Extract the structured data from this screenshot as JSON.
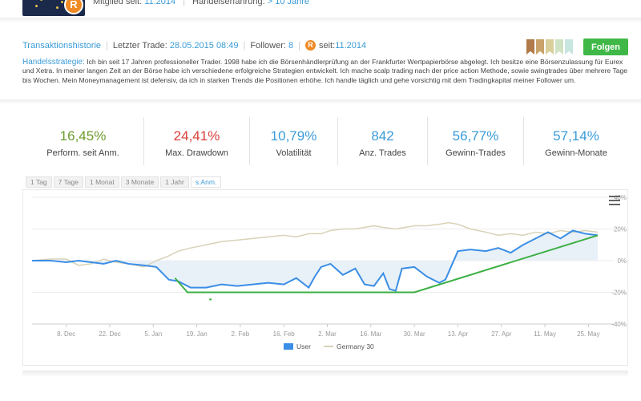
{
  "header": {
    "member_since_label": "Mitglied seit:",
    "member_since_value": "11.2014",
    "experience_label": "Handelserfahrung:",
    "experience_value": "> 10 Jahre",
    "avatar_badge": "R"
  },
  "profile": {
    "history_link": "Transaktionshistorie",
    "last_trade_label": "Letzter Trade:",
    "last_trade_value": "28.05.2015 08:49",
    "follower_label": "Follower:",
    "follower_value": "8",
    "since_label": "seit:",
    "since_value": "11.2014",
    "follow_button": "Folgen",
    "flag_colors": [
      "#b07a4a",
      "#c9a36a",
      "#d8cf9a",
      "#cfe2c4",
      "#c8e6e0"
    ]
  },
  "strategy": {
    "label": "Handelsstrategie:",
    "text": "Ich bin seit 17 Jahren professioneller Trader. 1998 habe ich die Börsenhändlerprüfung an der Frankfurter Wertpapierbörse abgelegt. Ich besitze eine Börsenzulassung für Eurex und Xetra. In meiner langen Zeit an der Börse habe ich verschiedene erfolgreiche Strategien entwickelt. Ich mache scalp trading nach der price action Methode, sowie swingtrades über mehrere Tage bis Wochen. Mein Moneymanagement ist defensiv, da ich in starken Trends die Positionen erhöhe. Ich handle täglich und gehe vorsichtig mit dem Tradingkapital meiner Follower um."
  },
  "stats": [
    {
      "value": "16,45%",
      "label": "Perform. seit Anm.",
      "color": "#6d9b2c"
    },
    {
      "value": "24,41%",
      "label": "Max. Drawdown",
      "color": "#d9403a"
    },
    {
      "value": "10,79%",
      "label": "Volatilität",
      "color": "#3a9bd8"
    },
    {
      "value": "842",
      "label": "Anz. Trades",
      "color": "#3a9bd8"
    },
    {
      "value": "56,77%",
      "label": "Gewinn-Trades",
      "color": "#3a9bd8"
    },
    {
      "value": "57,14%",
      "label": "Gewinn-Monate",
      "color": "#3a9bd8"
    }
  ],
  "chart_tabs": [
    "1 Tag",
    "7 Tage",
    "1 Monat",
    "3 Monate",
    "1 Jahr",
    "s.Anm."
  ],
  "chart_tab_active": "s.Anm.",
  "chart_data": {
    "type": "line",
    "x_ticks": [
      "8. Dec",
      "22. Dec",
      "5. Jan",
      "19. Jan",
      "2. Feb",
      "16. Feb",
      "2. Mar",
      "16. Mar",
      "30. Mar",
      "13. Apr",
      "27. Apr",
      "11. May",
      "25. May"
    ],
    "y_ticks": [
      "40%",
      "20%",
      "0%",
      "-20%",
      "-40%"
    ],
    "ylim": [
      -40,
      40
    ],
    "x_range": [
      "2014-11-27",
      "2015-05-28"
    ],
    "grid": true,
    "legend_position": "bottom",
    "series": [
      {
        "name": "User",
        "color": "#3a8ee6",
        "type": "area",
        "x": [
          "2014-11-27",
          "2014-12-03",
          "2014-12-08",
          "2014-12-12",
          "2014-12-16",
          "2014-12-20",
          "2014-12-24",
          "2014-12-28",
          "2015-01-02",
          "2015-01-06",
          "2015-01-10",
          "2015-01-13",
          "2015-01-17",
          "2015-01-22",
          "2015-01-27",
          "2015-02-01",
          "2015-02-06",
          "2015-02-11",
          "2015-02-16",
          "2015-02-20",
          "2015-02-24",
          "2015-02-26",
          "2015-02-28",
          "2015-03-03",
          "2015-03-07",
          "2015-03-11",
          "2015-03-14",
          "2015-03-17",
          "2015-03-20",
          "2015-03-22",
          "2015-03-24",
          "2015-03-26",
          "2015-03-30",
          "2015-04-03",
          "2015-04-07",
          "2015-04-09",
          "2015-04-11",
          "2015-04-13",
          "2015-04-17",
          "2015-04-22",
          "2015-04-26",
          "2015-04-30",
          "2015-05-04",
          "2015-05-08",
          "2015-05-12",
          "2015-05-16",
          "2015-05-20",
          "2015-05-24",
          "2015-05-28"
        ],
        "y": [
          0,
          0,
          -1,
          0,
          -1,
          -2,
          0,
          -2,
          -3,
          -4,
          -12,
          -13,
          -17,
          -17,
          -15,
          -16,
          -15,
          -14,
          -15,
          -11,
          -17,
          -10,
          -4,
          -2,
          -9,
          -5,
          -15,
          -16,
          -8,
          -18,
          -19,
          -5,
          -4,
          -10,
          -14,
          -12,
          -3,
          6,
          7,
          6,
          8,
          5,
          10,
          14,
          18,
          14,
          19,
          17,
          16
        ]
      },
      {
        "name": "Germany 30",
        "color": "#d8d2b8",
        "type": "line",
        "x": [
          "2014-11-27",
          "2014-12-03",
          "2014-12-08",
          "2014-12-12",
          "2014-12-16",
          "2014-12-20",
          "2014-12-24",
          "2014-12-28",
          "2015-01-02",
          "2015-01-06",
          "2015-01-10",
          "2015-01-13",
          "2015-01-17",
          "2015-01-22",
          "2015-01-27",
          "2015-02-01",
          "2015-02-06",
          "2015-02-11",
          "2015-02-16",
          "2015-02-20",
          "2015-02-24",
          "2015-02-28",
          "2015-03-03",
          "2015-03-07",
          "2015-03-11",
          "2015-03-14",
          "2015-03-17",
          "2015-03-20",
          "2015-03-24",
          "2015-03-30",
          "2015-04-03",
          "2015-04-07",
          "2015-04-10",
          "2015-04-13",
          "2015-04-17",
          "2015-04-22",
          "2015-04-26",
          "2015-04-30",
          "2015-05-04",
          "2015-05-08",
          "2015-05-12",
          "2015-05-16",
          "2015-05-20",
          "2015-05-24",
          "2015-05-28"
        ],
        "y": [
          0,
          1,
          1,
          -3,
          -2,
          1,
          -1,
          -2,
          -4,
          0,
          3,
          6,
          8,
          10,
          12,
          13,
          14,
          15,
          16,
          15,
          17,
          17,
          19,
          20,
          20,
          21,
          22,
          21,
          20,
          22,
          22,
          23,
          24,
          23,
          20,
          18,
          16,
          17,
          16,
          18,
          17,
          19,
          18,
          19,
          18
        ]
      }
    ],
    "annotation_line": {
      "color": "#3cb043",
      "x": [
        "2015-01-12",
        "2015-01-16",
        "2015-03-30",
        "2015-05-28"
      ],
      "y": [
        -11,
        -20,
        -20,
        16
      ]
    }
  }
}
